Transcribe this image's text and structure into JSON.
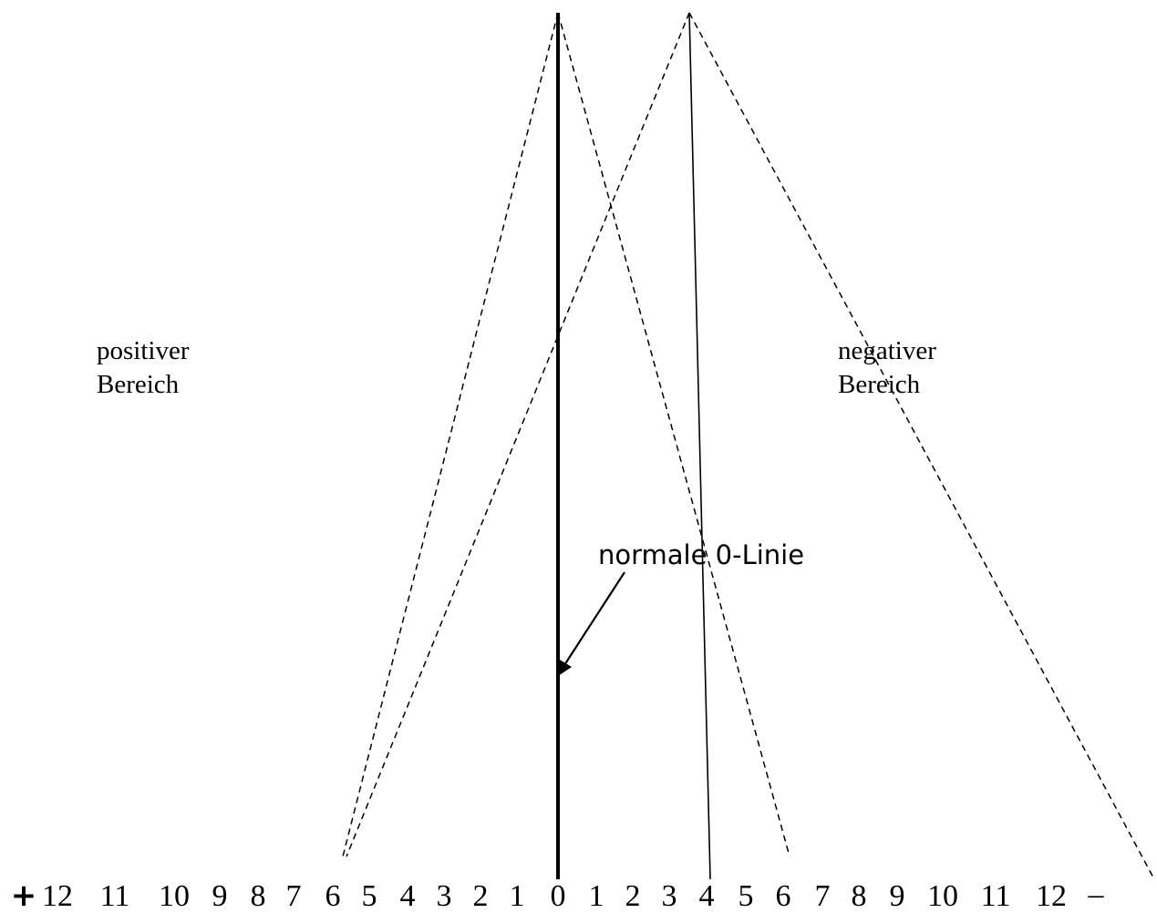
{
  "labels": {
    "positive_line1": "positiver",
    "positive_line2": "Bereich",
    "negative_line1": "negativer",
    "negative_line2": "Bereich",
    "annotation": "normale 0-Linie"
  },
  "scale": {
    "left_symbol": "+",
    "right_symbol": "–",
    "left_ticks": [
      "12",
      "11",
      "10",
      "9",
      "8",
      "7",
      "6",
      "5",
      "4",
      "3",
      "2",
      "1"
    ],
    "zero": "0",
    "right_ticks": [
      "1",
      "2",
      "3",
      "4",
      "5",
      "6",
      "7",
      "8",
      "9",
      "10",
      "11",
      "12"
    ]
  },
  "colors": {
    "ink": "#000000",
    "background": "#ffffff"
  }
}
